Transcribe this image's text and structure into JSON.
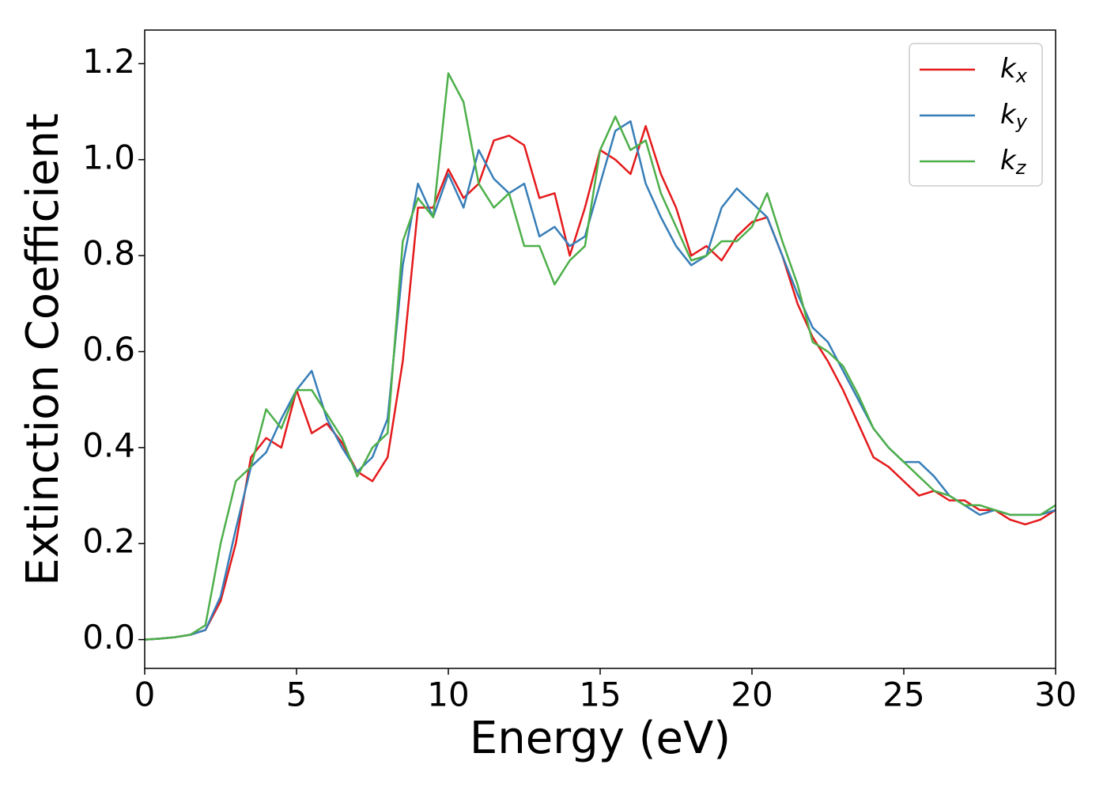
{
  "chart_data": {
    "type": "line",
    "xlabel": "Energy (eV)",
    "ylabel": "Extinction Coefficient",
    "x": [
      0,
      0.5,
      1,
      1.5,
      2,
      2.5,
      3,
      3.5,
      4,
      4.5,
      5,
      5.5,
      6,
      6.5,
      7,
      7.5,
      8,
      8.5,
      9,
      9.5,
      10,
      10.5,
      11,
      11.5,
      12,
      12.5,
      13,
      13.5,
      14,
      14.5,
      15,
      15.5,
      16,
      16.5,
      17,
      17.5,
      18,
      18.5,
      19,
      19.5,
      20,
      20.5,
      21,
      21.5,
      22,
      22.5,
      23,
      23.5,
      24,
      24.5,
      25,
      25.5,
      26,
      26.5,
      27,
      27.5,
      28,
      28.5,
      29,
      29.5,
      30
    ],
    "series": [
      {
        "name": "kx",
        "color": "#e41a1c",
        "values": [
          0,
          0.002,
          0.005,
          0.01,
          0.02,
          0.08,
          0.2,
          0.38,
          0.42,
          0.4,
          0.52,
          0.43,
          0.45,
          0.41,
          0.35,
          0.33,
          0.38,
          0.58,
          0.9,
          0.9,
          0.98,
          0.92,
          0.95,
          1.04,
          1.05,
          1.03,
          0.92,
          0.93,
          0.8,
          0.9,
          1.02,
          1.0,
          0.97,
          1.07,
          0.97,
          0.9,
          0.8,
          0.82,
          0.79,
          0.84,
          0.87,
          0.88,
          0.8,
          0.7,
          0.63,
          0.58,
          0.52,
          0.45,
          0.38,
          0.36,
          0.33,
          0.3,
          0.31,
          0.29,
          0.29,
          0.27,
          0.27,
          0.25,
          0.24,
          0.25,
          0.27
        ]
      },
      {
        "name": "ky",
        "color": "#377eb8",
        "values": [
          0,
          0.002,
          0.005,
          0.01,
          0.02,
          0.09,
          0.23,
          0.36,
          0.39,
          0.46,
          0.52,
          0.56,
          0.46,
          0.4,
          0.35,
          0.38,
          0.46,
          0.78,
          0.95,
          0.88,
          0.97,
          0.9,
          1.02,
          0.96,
          0.93,
          0.95,
          0.84,
          0.86,
          0.82,
          0.84,
          0.95,
          1.06,
          1.08,
          0.95,
          0.88,
          0.82,
          0.78,
          0.8,
          0.9,
          0.94,
          0.91,
          0.88,
          0.8,
          0.72,
          0.65,
          0.62,
          0.56,
          0.5,
          0.44,
          0.4,
          0.37,
          0.37,
          0.34,
          0.3,
          0.28,
          0.26,
          0.27,
          0.26,
          0.26,
          0.26,
          0.27
        ]
      },
      {
        "name": "kz",
        "color": "#4daf4a",
        "values": [
          0,
          0.002,
          0.005,
          0.01,
          0.03,
          0.2,
          0.33,
          0.36,
          0.48,
          0.44,
          0.52,
          0.52,
          0.47,
          0.42,
          0.34,
          0.4,
          0.43,
          0.83,
          0.92,
          0.88,
          1.18,
          1.12,
          0.95,
          0.9,
          0.93,
          0.82,
          0.82,
          0.74,
          0.79,
          0.82,
          1.02,
          1.09,
          1.02,
          1.04,
          0.93,
          0.86,
          0.79,
          0.8,
          0.83,
          0.83,
          0.86,
          0.93,
          0.83,
          0.74,
          0.62,
          0.6,
          0.57,
          0.51,
          0.44,
          0.4,
          0.37,
          0.34,
          0.31,
          0.3,
          0.28,
          0.28,
          0.27,
          0.26,
          0.26,
          0.26,
          0.28
        ]
      }
    ],
    "xlim": [
      0,
      30
    ],
    "ylim": [
      -0.06,
      1.27
    ],
    "xticks": [
      0,
      5,
      10,
      15,
      20,
      25,
      30
    ],
    "yticks": [
      {
        "value": 0,
        "label": "0.0"
      },
      0.2,
      0.4,
      0.6,
      0.8,
      {
        "value": 1,
        "label": "1.0"
      },
      1.2
    ],
    "legend": "upper right",
    "grid": false
  }
}
